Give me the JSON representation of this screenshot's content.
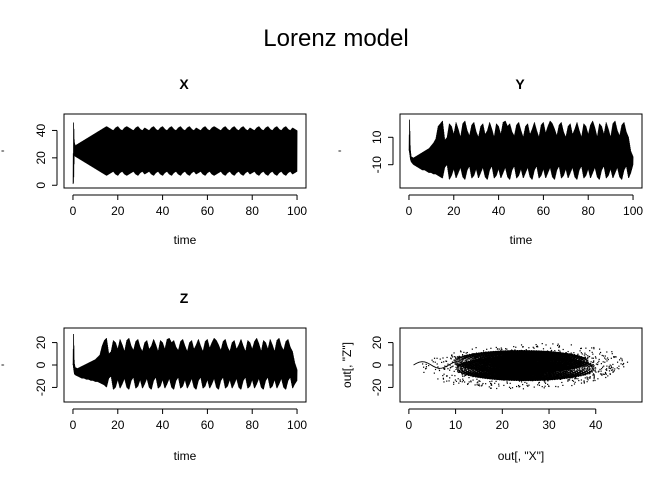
{
  "page_title": "Lorenz model",
  "chart_data": [
    {
      "id": "x_panel",
      "type": "line",
      "title": "X",
      "xlabel": "time",
      "ylabel": "",
      "ylabel_shown": "'",
      "xlim": [
        0,
        100
      ],
      "ylim": [
        0,
        50
      ],
      "x_ticks": [
        0,
        20,
        40,
        60,
        80,
        100
      ],
      "y_ticks": [
        0,
        20,
        40
      ],
      "grid": false,
      "series": [
        {
          "x": [
            0,
            0.3,
            0.6,
            1,
            2,
            3,
            4,
            5,
            6,
            7,
            8,
            9,
            10,
            11,
            12,
            13,
            14,
            15,
            16,
            17,
            18,
            19,
            20,
            21,
            22,
            23,
            24,
            25,
            26,
            27,
            28,
            29,
            30,
            31,
            32,
            33,
            34,
            35,
            36,
            37,
            38,
            39,
            40,
            41,
            42,
            43,
            44,
            45,
            46,
            47,
            48,
            49,
            50,
            51,
            52,
            53,
            54,
            55,
            56,
            57,
            58,
            59,
            60,
            61,
            62,
            63,
            64,
            65,
            66,
            67,
            68,
            69,
            70,
            71,
            72,
            73,
            74,
            75,
            76,
            77,
            78,
            79,
            80,
            81,
            82,
            83,
            84,
            85,
            86,
            87,
            88,
            89,
            90,
            91,
            92,
            93,
            94,
            95,
            96,
            97,
            98,
            99,
            100
          ],
          "y_max": [
            1,
            48,
            32,
            29,
            30,
            31,
            32,
            33,
            34,
            35,
            36,
            37,
            38,
            39,
            40,
            41,
            42,
            43,
            42,
            41,
            40,
            42,
            43,
            41,
            40,
            42,
            43,
            42,
            41,
            40,
            42,
            43,
            41,
            40,
            42,
            41,
            40,
            42,
            43,
            41,
            40,
            42,
            43,
            41,
            40,
            42,
            43,
            41,
            40,
            42,
            43,
            41,
            40,
            42,
            43,
            41,
            40,
            42,
            41,
            40,
            42,
            43,
            41,
            40,
            42,
            43,
            42,
            41,
            40,
            42,
            43,
            41,
            40,
            42,
            43,
            41,
            40,
            42,
            43,
            41,
            40,
            42,
            41,
            40,
            42,
            43,
            41,
            40,
            42,
            43,
            41,
            40,
            42,
            43,
            41,
            40,
            42,
            43,
            41,
            40,
            42,
            41,
            40
          ],
          "y_min": [
            1,
            2,
            22,
            21,
            20,
            19,
            18,
            17,
            16,
            15,
            14,
            13,
            12,
            11,
            10,
            9,
            8,
            7,
            8,
            9,
            10,
            8,
            7,
            9,
            10,
            8,
            7,
            8,
            9,
            10,
            8,
            7,
            9,
            10,
            8,
            9,
            10,
            8,
            7,
            9,
            10,
            8,
            7,
            9,
            10,
            8,
            7,
            9,
            10,
            8,
            7,
            9,
            10,
            8,
            7,
            9,
            10,
            8,
            9,
            10,
            8,
            7,
            9,
            10,
            8,
            7,
            8,
            9,
            10,
            8,
            7,
            9,
            10,
            8,
            7,
            9,
            10,
            8,
            7,
            9,
            10,
            8,
            9,
            10,
            8,
            7,
            9,
            10,
            8,
            7,
            9,
            10,
            8,
            7,
            9,
            10,
            8,
            7,
            9,
            10,
            8,
            9,
            10
          ]
        }
      ]
    },
    {
      "id": "y_panel",
      "type": "line",
      "title": "Y",
      "xlabel": "time",
      "ylabel": "",
      "ylabel_shown": "'",
      "xlim": [
        0,
        100
      ],
      "ylim": [
        -25,
        25
      ],
      "x_ticks": [
        0,
        20,
        40,
        60,
        80,
        100
      ],
      "y_ticks": [
        -10,
        10
      ],
      "grid": false,
      "series": [
        {
          "x": [
            0,
            0.3,
            0.6,
            1,
            2,
            3,
            4,
            5,
            6,
            7,
            8,
            9,
            10,
            11,
            12,
            13,
            14,
            15,
            16,
            17,
            18,
            19,
            20,
            21,
            22,
            23,
            24,
            25,
            26,
            27,
            28,
            29,
            30,
            31,
            32,
            33,
            34,
            35,
            36,
            37,
            38,
            39,
            40,
            41,
            42,
            43,
            44,
            45,
            46,
            47,
            48,
            49,
            50,
            51,
            52,
            53,
            54,
            55,
            56,
            57,
            58,
            59,
            60,
            61,
            62,
            63,
            64,
            65,
            66,
            67,
            68,
            69,
            70,
            71,
            72,
            73,
            74,
            75,
            76,
            77,
            78,
            79,
            80,
            81,
            82,
            83,
            84,
            85,
            86,
            87,
            88,
            89,
            90,
            91,
            92,
            93,
            94,
            95,
            96,
            97,
            98,
            99,
            100
          ],
          "y_max": [
            1,
            24,
            2,
            -4,
            -5,
            -4,
            -3,
            -2,
            -1,
            0,
            1,
            2,
            4,
            6,
            9,
            18,
            20,
            22,
            8,
            10,
            20,
            18,
            12,
            21,
            16,
            10,
            20,
            22,
            15,
            11,
            19,
            21,
            14,
            10,
            18,
            20,
            12,
            15,
            21,
            16,
            10,
            20,
            18,
            12,
            21,
            22,
            18,
            20,
            14,
            11,
            19,
            21,
            15,
            10,
            18,
            20,
            12,
            16,
            21,
            15,
            10,
            19,
            21,
            13,
            18,
            22,
            20,
            16,
            11,
            19,
            21,
            14,
            10,
            18,
            20,
            12,
            16,
            21,
            15,
            10,
            20,
            18,
            12,
            19,
            22,
            17,
            10,
            20,
            18,
            12,
            21,
            16,
            10,
            20,
            22,
            15,
            11,
            19,
            21,
            14,
            10,
            0,
            -4
          ],
          "y_max_note": "",
          "y_min": [
            1,
            -2,
            -6,
            -8,
            -10,
            -11,
            -12,
            -13,
            -14,
            -14,
            -15,
            -16,
            -16,
            -17,
            -17,
            -18,
            -19,
            -20,
            -12,
            -10,
            -21,
            -18,
            -13,
            -20,
            -16,
            -12,
            -19,
            -21,
            -14,
            -11,
            -20,
            -18,
            -13,
            -20,
            -16,
            -12,
            -19,
            -21,
            -14,
            -11,
            -20,
            -18,
            -13,
            -20,
            -16,
            -12,
            -19,
            -21,
            -14,
            -11,
            -20,
            -18,
            -13,
            -20,
            -16,
            -12,
            -19,
            -21,
            -14,
            -11,
            -20,
            -18,
            -13,
            -20,
            -16,
            -12,
            -19,
            -21,
            -14,
            -11,
            -20,
            -18,
            -13,
            -20,
            -16,
            -12,
            -19,
            -21,
            -14,
            -11,
            -20,
            -18,
            -13,
            -20,
            -16,
            -12,
            -19,
            -21,
            -14,
            -11,
            -20,
            -18,
            -13,
            -20,
            -16,
            -12,
            -19,
            -21,
            -14,
            -11,
            -20,
            -16,
            -10
          ]
        }
      ]
    },
    {
      "id": "z_panel",
      "type": "line",
      "title": "Z",
      "xlabel": "time",
      "ylabel": "",
      "ylabel_shown": "'",
      "xlim": [
        0,
        100
      ],
      "ylim": [
        -30,
        30
      ],
      "x_ticks": [
        0,
        20,
        40,
        60,
        80,
        100
      ],
      "y_ticks": [
        -20,
        0,
        20
      ],
      "grid": false,
      "series": [
        {
          "x": [
            0,
            0.3,
            0.6,
            1,
            2,
            3,
            4,
            5,
            6,
            7,
            8,
            9,
            10,
            11,
            12,
            13,
            14,
            15,
            16,
            17,
            18,
            19,
            20,
            21,
            22,
            23,
            24,
            25,
            26,
            27,
            28,
            29,
            30,
            31,
            32,
            33,
            34,
            35,
            36,
            37,
            38,
            39,
            40,
            41,
            42,
            43,
            44,
            45,
            46,
            47,
            48,
            49,
            50,
            51,
            52,
            53,
            54,
            55,
            56,
            57,
            58,
            59,
            60,
            61,
            62,
            63,
            64,
            65,
            66,
            67,
            68,
            69,
            70,
            71,
            72,
            73,
            74,
            75,
            76,
            77,
            78,
            79,
            80,
            81,
            82,
            83,
            84,
            85,
            86,
            87,
            88,
            89,
            90,
            91,
            92,
            93,
            94,
            95,
            96,
            97,
            98,
            99,
            100
          ],
          "y_max": [
            1,
            29,
            2,
            -2,
            -3,
            -2,
            -1,
            0,
            1,
            2,
            3,
            4,
            5,
            7,
            9,
            17,
            22,
            24,
            10,
            12,
            22,
            20,
            14,
            23,
            18,
            12,
            22,
            24,
            17,
            13,
            21,
            23,
            16,
            12,
            20,
            22,
            14,
            17,
            23,
            18,
            12,
            22,
            20,
            14,
            23,
            24,
            20,
            22,
            16,
            13,
            21,
            23,
            17,
            12,
            20,
            22,
            14,
            18,
            23,
            17,
            12,
            21,
            23,
            15,
            20,
            24,
            22,
            18,
            13,
            21,
            23,
            16,
            12,
            20,
            22,
            14,
            18,
            23,
            17,
            12,
            22,
            20,
            14,
            21,
            24,
            19,
            12,
            22,
            20,
            14,
            23,
            18,
            12,
            22,
            24,
            17,
            13,
            21,
            23,
            16,
            12,
            2,
            -4
          ],
          "y_min": [
            1,
            -4,
            -8,
            -9,
            -10,
            -11,
            -12,
            -12,
            -13,
            -13,
            -14,
            -14,
            -15,
            -15,
            -16,
            -17,
            -18,
            -20,
            -12,
            -10,
            -22,
            -20,
            -13,
            -21,
            -17,
            -12,
            -20,
            -22,
            -14,
            -11,
            -21,
            -19,
            -13,
            -21,
            -17,
            -12,
            -20,
            -22,
            -14,
            -11,
            -21,
            -19,
            -13,
            -21,
            -17,
            -12,
            -20,
            -22,
            -14,
            -11,
            -21,
            -19,
            -13,
            -21,
            -17,
            -12,
            -20,
            -22,
            -14,
            -11,
            -21,
            -19,
            -13,
            -21,
            -17,
            -12,
            -20,
            -22,
            -14,
            -11,
            -21,
            -19,
            -13,
            -21,
            -17,
            -12,
            -20,
            -22,
            -14,
            -11,
            -21,
            -19,
            -13,
            -21,
            -17,
            -12,
            -20,
            -22,
            -14,
            -11,
            -21,
            -19,
            -13,
            -21,
            -17,
            -12,
            -20,
            -22,
            -14,
            -11,
            -21,
            -17,
            -14
          ]
        }
      ]
    },
    {
      "id": "xz_panel",
      "type": "scatter",
      "title": "",
      "xlabel": "out[, \"X\"]",
      "ylabel": "out[, \"Z\"]",
      "xlim": [
        0,
        48
      ],
      "ylim": [
        -30,
        30
      ],
      "x_ticks": [
        0,
        10,
        20,
        30,
        40
      ],
      "y_ticks": [
        -20,
        0,
        20
      ],
      "grid": false,
      "attractor": {
        "lobes": [
          {
            "cx": 27,
            "cy": 3,
            "rx_min": 1.5,
            "rx_max": 14.5,
            "ry_min": 1.2,
            "ry_max": 10
          },
          {
            "cx": 23,
            "cy": -3,
            "rx_min": 1.5,
            "rx_max": 15,
            "ry_min": 1.2,
            "ry_max": 11
          }
        ],
        "x_range": [
          1,
          47
        ],
        "z_range": [
          -23,
          22
        ]
      }
    }
  ]
}
